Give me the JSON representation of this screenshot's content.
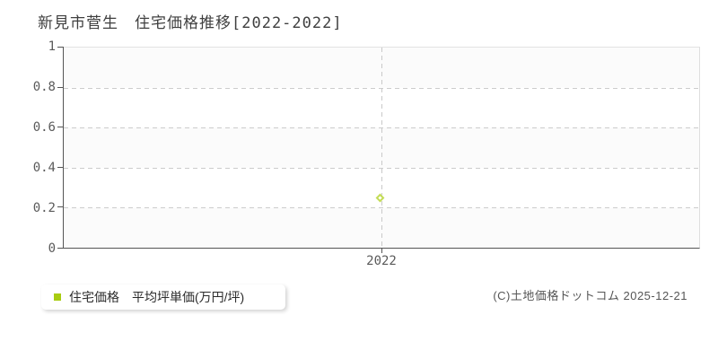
{
  "title": "新見市菅生　住宅価格推移[2022-2022]",
  "legend": {
    "label": "住宅価格　平均坪単価(万円/坪)",
    "swatch_color": "#a8cc11"
  },
  "footer": {
    "copyright": "(C)土地価格ドットコム 2025-12-21"
  },
  "colors": {
    "series": "#bcd63e",
    "marker_stroke": "#c3dc55",
    "axis": "#545454",
    "grid": "#cccccc",
    "plot_band": "#fbfbfb"
  },
  "chart_data": {
    "type": "scatter",
    "title": "新見市菅生 住宅価格推移[2022-2022]",
    "series": [
      {
        "name": "住宅価格 平均坪単価(万円/坪)",
        "x": [
          2022
        ],
        "y": [
          0.25
        ],
        "marker": "hollow-diamond",
        "color": "#bcd63e"
      }
    ],
    "xlabel": "",
    "ylabel": "平均坪単価(万円/坪)",
    "xtick_labels": [
      "2022"
    ],
    "ytick_labels": [
      "1",
      "0.8",
      "0.6",
      "0.4",
      "0.2",
      "0"
    ],
    "ylim": [
      0,
      1
    ],
    "xlim_years": [
      2022,
      2022
    ],
    "grid": "horizontal-dashed",
    "vertical_guide_x": 2022,
    "legend_position": "bottom-left"
  }
}
